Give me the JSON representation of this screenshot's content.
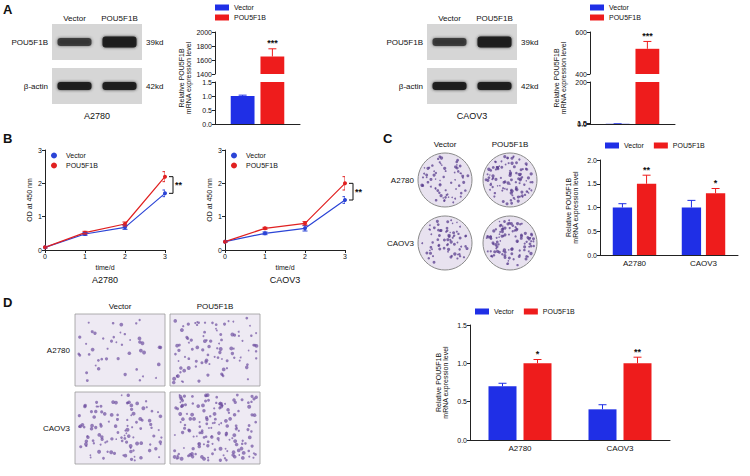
{
  "panel_labels": [
    "A",
    "B",
    "C",
    "D"
  ],
  "blots": [
    {
      "cell_line": "A2780",
      "lanes": [
        "Vector",
        "POU5F1B"
      ],
      "bands": [
        {
          "protein": "POU5F1B",
          "size": "39kd"
        },
        {
          "protein": "β-actin",
          "size": "42kd"
        }
      ]
    },
    {
      "cell_line": "CAOV3",
      "lanes": [
        "Vector",
        "POU5F1B"
      ],
      "bands": [
        {
          "protein": "POU5F1B",
          "size": "39kd"
        },
        {
          "protein": "β-actin",
          "size": "42kd"
        }
      ]
    }
  ],
  "colony_images": {
    "columns": [
      "Vector",
      "POU5F1B"
    ],
    "rows": [
      "A2780",
      "CAOV3"
    ]
  },
  "transwell_images": {
    "columns": [
      "Vector",
      "POU5F1B"
    ],
    "rows": [
      "A2780",
      "CAOV3"
    ]
  },
  "chart_data": [
    {
      "type": "bar",
      "y_label": "Relative POU5F1B mRNA expression level",
      "categories": [
        null
      ],
      "ylim": [
        0,
        2000
      ],
      "yticks": [
        {
          "value": 0,
          "label": "0.0"
        },
        {
          "value": 0.5,
          "label": "0.5"
        },
        {
          "value": 1,
          "label": "1.0"
        },
        {
          "value": 1.5,
          "label": "1.5"
        },
        1400,
        1600,
        1800,
        2000
      ],
      "grid": false,
      "legend": "top-left",
      "series": [
        {
          "name": "Vector",
          "color": "#1f2fe6",
          "values": [
            1.0
          ],
          "errors": [
            0.03
          ]
        },
        {
          "name": "POU5F1B",
          "color": "#ee1c1c",
          "values": [
            1650
          ],
          "errors": [
            110
          ],
          "significance": [
            "***"
          ]
        }
      ]
    },
    {
      "type": "bar",
      "y_label": "Relative POU5F1B mRNA expression level",
      "categories": [
        null
      ],
      "ylim": [
        0,
        600
      ],
      "yticks": [
        {
          "value": 0,
          "label": "0.0"
        },
        {
          "value": 0.5,
          "label": "0.5"
        },
        {
          "value": 1,
          "label": "1.0"
        },
        {
          "value": 1.5,
          "label": "1.5"
        },
        200,
        400,
        600
      ],
      "grid": false,
      "legend": "top-left",
      "series": [
        {
          "name": "Vector",
          "color": "#1f2fe6",
          "values": [
            1.0
          ],
          "errors": [
            0.03
          ]
        },
        {
          "name": "POU5F1B",
          "color": "#ee1c1c",
          "values": [
            520
          ],
          "errors": [
            35
          ],
          "significance": [
            "***"
          ]
        }
      ]
    },
    {
      "type": "line",
      "x_label": "time/d",
      "subtitle": "A2780",
      "y_label": "OD at 450 nm",
      "x": [
        0,
        1,
        2,
        3
      ],
      "xlim": [
        0,
        3
      ],
      "xticks": [
        0,
        1,
        2,
        3
      ],
      "ylim": [
        0,
        3
      ],
      "yticks": [
        0,
        1,
        2,
        3
      ],
      "grid": false,
      "legend": "top-left",
      "annotation": "**",
      "series": [
        {
          "name": "Vector",
          "color": "#2b44d6",
          "marker": "circle",
          "line_style": "solid",
          "values": [
            0.08,
            0.48,
            0.68,
            1.7
          ],
          "errors": [
            0.02,
            0.04,
            0.06,
            0.1
          ]
        },
        {
          "name": "POU5F1B",
          "color": "#e02020",
          "marker": "circle",
          "line_style": "solid",
          "values": [
            0.08,
            0.52,
            0.78,
            2.2
          ],
          "errors": [
            0.02,
            0.04,
            0.06,
            0.15
          ]
        }
      ]
    },
    {
      "type": "line",
      "x_label": "time/d",
      "subtitle": "CAOV3",
      "y_label": "OD at 450 nm",
      "x": [
        0,
        1,
        2,
        3
      ],
      "xlim": [
        0,
        3
      ],
      "xticks": [
        0,
        1,
        2,
        3
      ],
      "ylim": [
        0,
        3
      ],
      "yticks": [
        0,
        1,
        2,
        3
      ],
      "grid": false,
      "legend": "top-left",
      "annotation": "**",
      "series": [
        {
          "name": "Vector",
          "color": "#2b44d6",
          "marker": "circle",
          "line_style": "solid",
          "values": [
            0.25,
            0.5,
            0.65,
            1.5
          ],
          "errors": [
            0.02,
            0.04,
            0.08,
            0.1
          ]
        },
        {
          "name": "POU5F1B",
          "color": "#e02020",
          "marker": "circle",
          "line_style": "solid",
          "values": [
            0.25,
            0.65,
            0.8,
            2.0
          ],
          "errors": [
            0.02,
            0.03,
            0.05,
            0.2
          ]
        }
      ]
    },
    {
      "type": "bar",
      "y_label": "Relative POU5F1B mRNA expression level",
      "categories": [
        "A2780",
        "CAOV3"
      ],
      "ylim": [
        0,
        2
      ],
      "yticks": [
        {
          "value": 0,
          "label": "0.0"
        },
        {
          "value": 0.5,
          "label": "0.5"
        },
        {
          "value": 1,
          "label": "1.0"
        },
        {
          "value": 1.5,
          "label": "1.5"
        },
        {
          "value": 2,
          "label": "2.0"
        }
      ],
      "grid": false,
      "legend": "top",
      "series": [
        {
          "name": "Vector",
          "color": "#1f2fe6",
          "values": [
            1.0,
            1.0
          ],
          "errors": [
            0.08,
            0.15
          ]
        },
        {
          "name": "POU5F1B",
          "color": "#ee1c1c",
          "values": [
            1.5,
            1.3
          ],
          "errors": [
            0.18,
            0.1
          ],
          "significance": [
            "**",
            "*"
          ]
        }
      ]
    },
    {
      "type": "bar",
      "y_label": "Relative POU5F1B mRNA expression level",
      "categories": [
        "A2780",
        "CAOV3"
      ],
      "ylim": [
        0,
        1.5
      ],
      "yticks": [
        {
          "value": 0,
          "label": "0.0"
        },
        {
          "value": 0.5,
          "label": "0.5"
        },
        {
          "value": 1,
          "label": "1.0"
        },
        {
          "value": 1.5,
          "label": "1.5"
        }
      ],
      "grid": false,
      "legend": "top",
      "series": [
        {
          "name": "Vector",
          "color": "#1f2fe6",
          "values": [
            0.7,
            0.4
          ],
          "errors": [
            0.04,
            0.06
          ]
        },
        {
          "name": "POU5F1B",
          "color": "#ee1c1c",
          "values": [
            1.0,
            1.0
          ],
          "errors": [
            0.05,
            0.08
          ],
          "significance": [
            "*",
            "**"
          ]
        }
      ]
    }
  ]
}
